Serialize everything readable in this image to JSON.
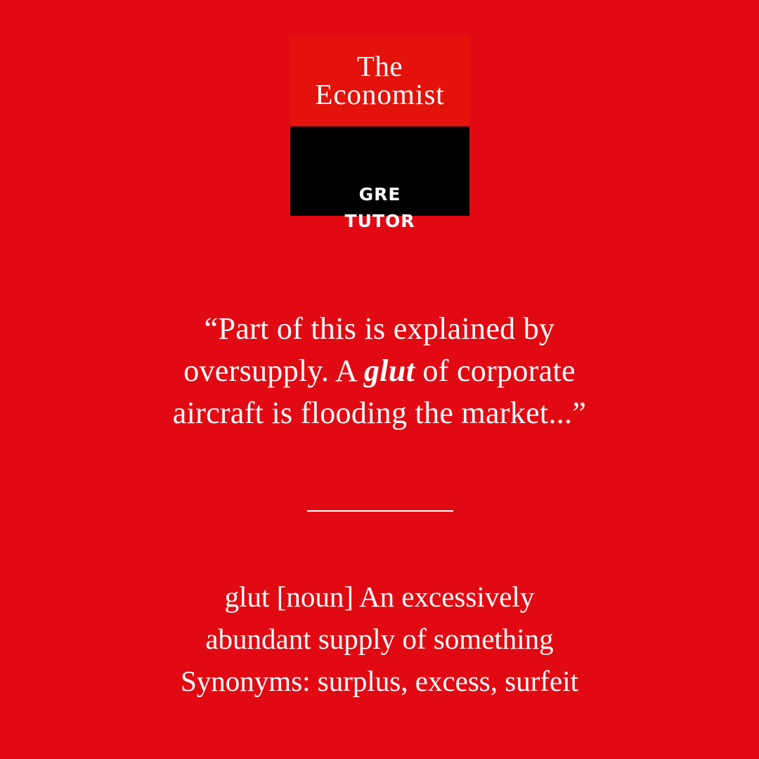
{
  "logo": {
    "line1": "The",
    "line2": "Economist",
    "tag_line1": "GRE",
    "tag_line2": "TUTOR",
    "top_color": "#e3120b",
    "bottom_color": "#000000"
  },
  "quote": {
    "line1": "“Part of this is explained by",
    "line2_before": "oversupply. A ",
    "line2_keyword": "glut",
    "line2_after": " of corporate",
    "line3": "aircraft is flooding the market...”"
  },
  "definition": {
    "line1": "glut [noun] An excessively",
    "line2": "abundant supply of something",
    "line3": "Synonyms: surplus, excess, surfeit"
  },
  "colors": {
    "background": "#e10a13",
    "text": "#ffffff"
  }
}
